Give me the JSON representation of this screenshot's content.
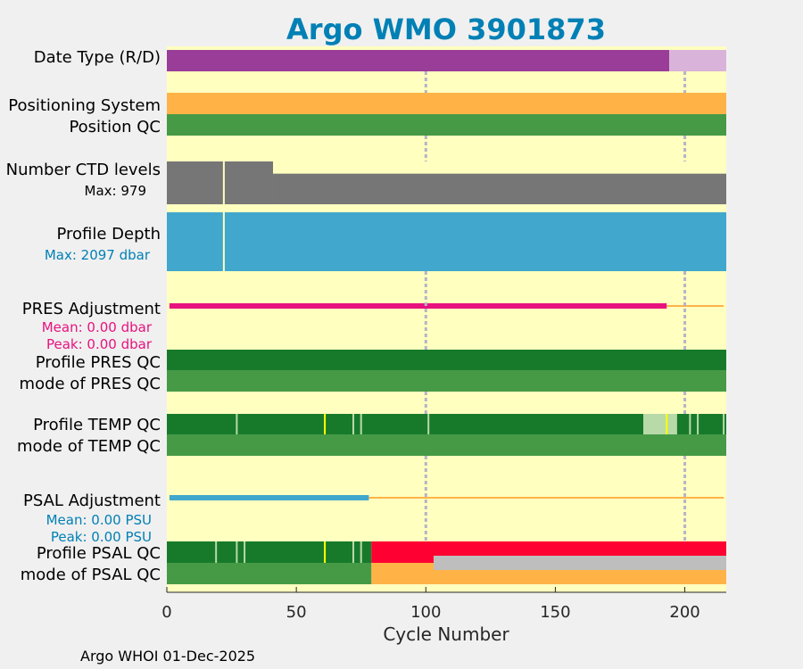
{
  "chart_data": {
    "type": "bar",
    "title": "Argo WMO 3901873",
    "xlabel": "Cycle Number",
    "xlim": [
      0,
      216
    ],
    "xticks": [
      0,
      50,
      100,
      150,
      200
    ],
    "gridlines": [
      100,
      200
    ],
    "rows": [
      {
        "key": "date_type",
        "label": "Date Type (R/D)"
      },
      {
        "key": "positioning",
        "label": "Positioning System"
      },
      {
        "key": "position_qc",
        "label": "Position QC"
      },
      {
        "key": "ctd_levels",
        "label": "Number CTD levels",
        "sublabel": "Max: 979",
        "max": 979,
        "typical": 700
      },
      {
        "key": "profile_depth",
        "label": "Profile Depth",
        "sublabel": "Max: 2097 dbar",
        "max": 2097,
        "typical": 2000
      },
      {
        "key": "pres_adjustment",
        "label": "PRES Adjustment",
        "sublabels": [
          "Mean: 0.00 dbar",
          "Peak: 0.00 dbar"
        ]
      },
      {
        "key": "profile_pres_qc",
        "label": "Profile PRES QC"
      },
      {
        "key": "mode_pres_qc",
        "label": "mode of PRES QC"
      },
      {
        "key": "profile_temp_qc",
        "label": "Profile TEMP QC"
      },
      {
        "key": "mode_temp_qc",
        "label": "mode of TEMP QC"
      },
      {
        "key": "psal_adjustment",
        "label": "PSAL Adjustment",
        "sublabels": [
          "Mean: 0.00 PSU",
          "Peak: 0.00 PSU"
        ]
      },
      {
        "key": "profile_psal_qc",
        "label": "Profile PSAL QC"
      },
      {
        "key": "mode_psal_qc",
        "label": "mode of PSAL QC"
      }
    ],
    "series": {
      "date_type": [
        {
          "from": 0,
          "to": 194,
          "value": "D"
        },
        {
          "from": 194,
          "to": 216,
          "value": "R"
        }
      ],
      "positioning": [
        {
          "from": 0,
          "to": 216,
          "value": "GPS"
        }
      ],
      "position_qc": [
        {
          "from": 0,
          "to": 216,
          "value": "1"
        }
      ],
      "pres_adjustment_adjusted_to": 193,
      "profile_pres_qc": [
        {
          "from": 0,
          "to": 216,
          "value": "A"
        }
      ],
      "mode_pres_qc": [
        {
          "from": 0,
          "to": 216,
          "value": "1"
        }
      ],
      "profile_temp_qc": [
        {
          "from": 0,
          "to": 184,
          "value": "A"
        },
        {
          "from": 184,
          "to": 197,
          "value": "B"
        },
        {
          "from": 197,
          "to": 216,
          "value": "A"
        }
      ],
      "profile_temp_qc_gaps": [
        27,
        61,
        72,
        75,
        101,
        193,
        202,
        205,
        215
      ],
      "mode_temp_qc": [
        {
          "from": 0,
          "to": 216,
          "value": "1"
        }
      ],
      "psal_adjustment_adjusted_to": 78,
      "profile_psal_qc": [
        {
          "from": 0,
          "to": 79,
          "value": "A"
        },
        {
          "from": 79,
          "to": 216,
          "value": "F"
        }
      ],
      "profile_psal_qc_gaps": [
        19,
        27,
        30,
        61,
        72,
        75
      ],
      "mode_psal_qc": [
        {
          "from": 0,
          "to": 79,
          "value": "1"
        },
        {
          "from": 79,
          "to": 103,
          "value": "3"
        },
        {
          "from": 103,
          "to": 216,
          "value": "3/4"
        }
      ]
    }
  },
  "footer": "Argo WHOI 01-Dec-2025",
  "colors": {
    "background": "#ffffc0",
    "delayed": "#993d99",
    "realtime": "#d9b3d9",
    "orange": "#ffb347",
    "qc_good": "#469a46",
    "qc_a": "#177a2a",
    "qc_b": "#b8d9a8",
    "qc_bad": "#ff0032",
    "gray_bar": "#bebebe",
    "ctd": "#767676",
    "depth": "#41a7cc",
    "pres_adj": "#e8127f",
    "psal_adj": "#41a7cc",
    "grid": "#b4b4c8",
    "title": "#0080b5"
  }
}
